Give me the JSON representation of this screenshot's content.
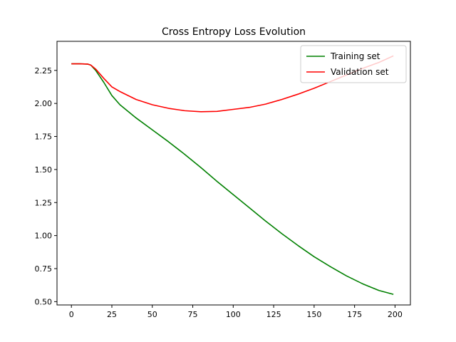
{
  "chart_data": {
    "type": "line",
    "title": "Cross Entropy Loss Evolution",
    "xlabel": "",
    "ylabel": "",
    "xlim": [
      -8.9,
      209.5
    ],
    "ylim": [
      0.475,
      2.47
    ],
    "xticks": [
      0,
      25,
      50,
      75,
      100,
      125,
      150,
      175,
      200
    ],
    "yticks": [
      0.5,
      0.75,
      1.0,
      1.25,
      1.5,
      1.75,
      2.0,
      2.25
    ],
    "xtick_labels": [
      "0",
      "25",
      "50",
      "75",
      "100",
      "125",
      "150",
      "175",
      "200"
    ],
    "ytick_labels": [
      "0.50",
      "0.75",
      "1.00",
      "1.25",
      "1.50",
      "1.75",
      "2.00",
      "2.25"
    ],
    "grid": false,
    "legend": "top-right",
    "series": [
      {
        "name": "Training set",
        "color": "#008000",
        "x": [
          0,
          5,
          10,
          12,
          15,
          20,
          25,
          30,
          40,
          50,
          60,
          70,
          80,
          90,
          100,
          110,
          120,
          130,
          140,
          150,
          160,
          170,
          180,
          190,
          199
        ],
        "y": [
          2.3,
          2.3,
          2.298,
          2.29,
          2.25,
          2.16,
          2.06,
          1.99,
          1.89,
          1.8,
          1.71,
          1.615,
          1.515,
          1.41,
          1.31,
          1.21,
          1.11,
          1.015,
          0.925,
          0.84,
          0.765,
          0.695,
          0.635,
          0.585,
          0.555
        ]
      },
      {
        "name": "Validation set",
        "color": "#ff0000",
        "x": [
          0,
          5,
          10,
          12,
          15,
          20,
          25,
          30,
          40,
          50,
          60,
          70,
          80,
          90,
          100,
          110,
          120,
          130,
          140,
          150,
          160,
          170,
          180,
          190,
          199
        ],
        "y": [
          2.3,
          2.3,
          2.298,
          2.29,
          2.26,
          2.19,
          2.125,
          2.09,
          2.03,
          1.99,
          1.963,
          1.945,
          1.937,
          1.94,
          1.955,
          1.97,
          1.995,
          2.03,
          2.07,
          2.115,
          2.165,
          2.215,
          2.265,
          2.31,
          2.36
        ]
      }
    ]
  }
}
